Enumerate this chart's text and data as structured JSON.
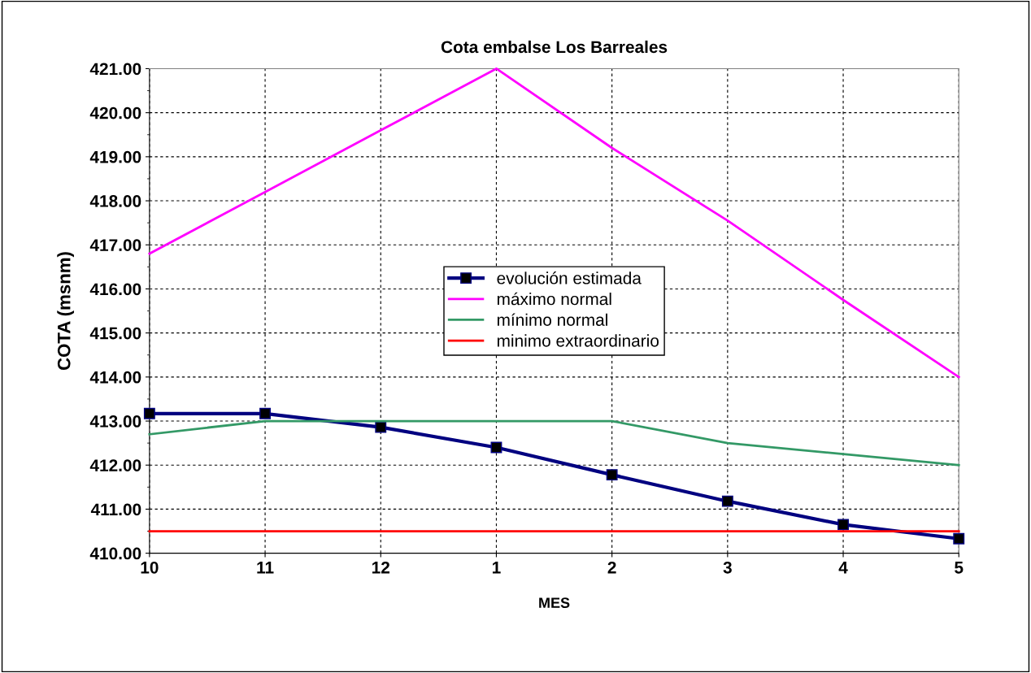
{
  "chart_data": {
    "type": "line",
    "title": "Cota embalse Los Barreales",
    "xlabel": "MES",
    "ylabel": "COTA (msnm)",
    "categories": [
      "10",
      "11",
      "12",
      "1",
      "2",
      "3",
      "4",
      "5"
    ],
    "series": [
      {
        "name": "evolución estimada",
        "color": "#000080",
        "marker": "square",
        "values": [
          413.17,
          413.17,
          412.86,
          412.4,
          411.78,
          411.18,
          410.65,
          410.33
        ]
      },
      {
        "name": "máximo normal",
        "color": "#ff00ff",
        "marker": "none",
        "values": [
          416.8,
          418.2,
          419.6,
          421.0,
          419.2,
          417.55,
          415.75,
          414.0
        ]
      },
      {
        "name": "mínimo normal",
        "color": "#339966",
        "marker": "none",
        "values": [
          412.7,
          413.0,
          413.0,
          413.0,
          413.0,
          412.5,
          412.25,
          412.0
        ]
      },
      {
        "name": "minimo extraordinario",
        "color": "#ff0000",
        "marker": "none",
        "values": [
          410.5,
          410.5,
          410.5,
          410.5,
          410.5,
          410.5,
          410.5,
          410.5
        ]
      }
    ],
    "ylim": [
      410,
      421
    ],
    "yticks": [
      {
        "value": 410,
        "label": "410.00"
      },
      {
        "value": 411,
        "label": "411.00"
      },
      {
        "value": 412,
        "label": "412.00"
      },
      {
        "value": 413,
        "label": "413.00"
      },
      {
        "value": 414,
        "label": "414.00"
      },
      {
        "value": 415,
        "label": "415.00"
      },
      {
        "value": 416,
        "label": "416.00"
      },
      {
        "value": 417,
        "label": "417.00"
      },
      {
        "value": 418,
        "label": "418.00"
      },
      {
        "value": 419,
        "label": "419.00"
      },
      {
        "value": 420,
        "label": "420.00"
      },
      {
        "value": 421,
        "label": "421.00"
      }
    ],
    "grid": true,
    "legend": "center"
  }
}
